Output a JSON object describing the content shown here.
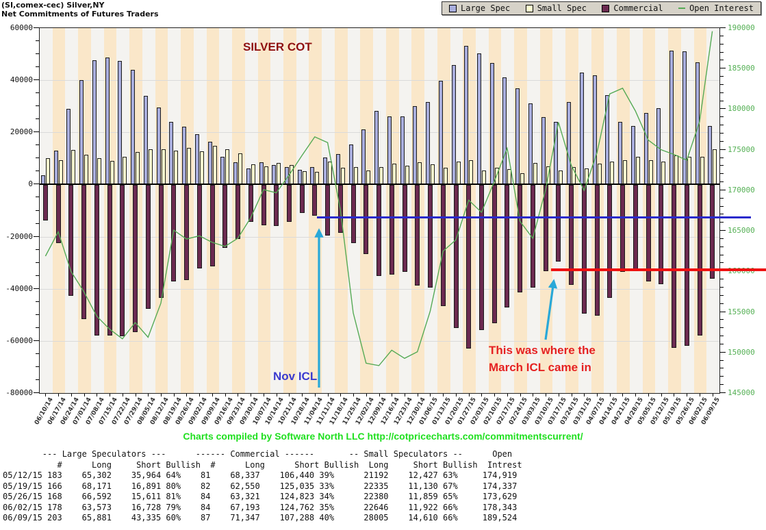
{
  "header": {
    "title": "(SI,comex-cec) Silver,NY",
    "subtitle": "Net Commitments of Futures Traders"
  },
  "legend": {
    "items": [
      {
        "label": "Large Spec",
        "color": "#A9AEDE",
        "type": "square"
      },
      {
        "label": "Small Spec",
        "color": "#FFFFCF",
        "type": "square"
      },
      {
        "label": "Commercial",
        "color": "#6B2A50",
        "type": "square"
      },
      {
        "label": "Open Interest",
        "color": "#55AA55",
        "type": "dash"
      }
    ]
  },
  "chart_data": {
    "type": "combo",
    "categories": [
      "06/10/14",
      "06/17/14",
      "06/24/14",
      "07/01/14",
      "07/08/14",
      "07/15/14",
      "07/22/14",
      "07/29/14",
      "08/05/14",
      "08/12/14",
      "08/19/14",
      "08/26/14",
      "09/02/14",
      "09/09/14",
      "09/16/14",
      "09/23/14",
      "09/30/14",
      "10/07/14",
      "10/14/14",
      "10/21/14",
      "10/28/14",
      "11/04/14",
      "11/11/14",
      "11/18/14",
      "11/25/14",
      "12/02/14",
      "12/09/14",
      "12/16/14",
      "12/23/14",
      "12/30/14",
      "01/06/15",
      "01/13/15",
      "01/20/15",
      "01/27/15",
      "02/03/15",
      "02/10/15",
      "02/17/15",
      "02/24/15",
      "03/03/15",
      "03/10/15",
      "03/17/15",
      "03/24/15",
      "03/31/15",
      "04/07/15",
      "04/14/15",
      "04/21/15",
      "04/28/15",
      "05/05/15",
      "05/12/15",
      "05/19/15",
      "05/26/15",
      "06/02/15",
      "06/09/15"
    ],
    "series": [
      {
        "name": "Large Spec",
        "type": "bar",
        "axis": "left",
        "color": "#A9AEDE",
        "values": [
          3600,
          13000,
          29100,
          40100,
          47600,
          48800,
          47300,
          43900,
          34000,
          29600,
          23900,
          22300,
          19200,
          16500,
          10700,
          8600,
          6200,
          8600,
          7400,
          6700,
          5500,
          6700,
          10400,
          11700,
          15300,
          21200,
          28100,
          26200,
          26000,
          30000,
          31600,
          39900,
          45900,
          53300,
          50300,
          46700,
          41000,
          37000,
          31000,
          25900,
          24000,
          31600,
          43000,
          42000,
          34200,
          24000,
          22400,
          27500,
          29338,
          51280,
          50981,
          46845,
          22546
        ]
      },
      {
        "name": "Small Spec",
        "type": "bar",
        "axis": "left",
        "color": "#FFFFCF",
        "values": [
          10000,
          9300,
          13300,
          11300,
          10200,
          9000,
          10600,
          12400,
          13500,
          13600,
          13000,
          14000,
          12800,
          14700,
          13400,
          12000,
          7800,
          6900,
          8300,
          7400,
          5200,
          4900,
          8800,
          6500,
          6800,
          5300,
          6600,
          8000,
          7300,
          8600,
          7800,
          6400,
          8800,
          9300,
          5400,
          6300,
          6000,
          4200,
          8300,
          7000,
          5400,
          6700,
          6200,
          8000,
          8900,
          9300,
          10600,
          9300,
          8765,
          11205,
          10521,
          10724,
          13395
        ]
      },
      {
        "name": "Commercial",
        "type": "bar",
        "axis": "left",
        "color": "#6B2A50",
        "values": [
          -13600,
          -22300,
          -42400,
          -51400,
          -57800,
          -57800,
          -57900,
          -56300,
          -47500,
          -43200,
          -36900,
          -36300,
          -32000,
          -31200,
          -24100,
          -20600,
          -14000,
          -15500,
          -15700,
          -14100,
          -10700,
          -11600,
          -19200,
          -18200,
          -22100,
          -26500,
          -34700,
          -34200,
          -33300,
          -38600,
          -39400,
          -46300,
          -54700,
          -62600,
          -55700,
          -53000,
          -47000,
          -41200,
          -39300,
          -32900,
          -29400,
          -38300,
          -49200,
          -50000,
          -43100,
          -33300,
          -33000,
          -36800,
          -38103,
          -62485,
          -61502,
          -57569,
          -35941
        ]
      },
      {
        "name": "Open Interest",
        "type": "line",
        "axis": "right",
        "color": "#55AA55",
        "values": [
          161800,
          164800,
          159900,
          157400,
          154400,
          152800,
          151600,
          153600,
          151800,
          156000,
          165000,
          163900,
          164300,
          163500,
          163000,
          164000,
          166500,
          170000,
          169600,
          171800,
          174200,
          176500,
          175800,
          167500,
          154800,
          148600,
          148300,
          150200,
          149200,
          150000,
          155000,
          162400,
          163800,
          168700,
          167200,
          171000,
          175100,
          166100,
          164000,
          170000,
          178300,
          173000,
          169900,
          174500,
          181800,
          182500,
          179700,
          176100,
          174919,
          174337,
          173629,
          178343,
          189524
        ]
      }
    ],
    "left_axis": {
      "min": -80000,
      "max": 60000,
      "step": 20000,
      "minor_step": 5000,
      "labels": [
        "60000",
        "40000",
        "20000",
        "0",
        "-20000",
        "-40000",
        "-60000",
        "-80000"
      ]
    },
    "right_axis": {
      "min": 145000,
      "max": 190000,
      "step": 5000,
      "minor_step": 1000,
      "color": "#55B055",
      "labels": [
        "190000",
        "185000",
        "180000",
        "175000",
        "170000",
        "165000",
        "160000",
        "155000",
        "150000",
        "145000"
      ]
    },
    "background": {
      "stripe_even": "#F4F3F0",
      "stripe_odd": "#FAE7C9"
    },
    "grid": true,
    "legend_position": "top-right"
  },
  "annotations": {
    "silver_cot": {
      "text": "SILVER COT",
      "color": "#8F1010"
    },
    "nov_icl": {
      "text": "Nov ICL",
      "color": "#3A3ACF"
    },
    "march_icl": {
      "line1": "This was where the",
      "line2": "March ICL came in",
      "color": "#E52222"
    },
    "blue_line": {
      "value": -12800,
      "color": "#2A2ACC"
    },
    "red_line": {
      "value": -33300,
      "color": "#EE1111"
    },
    "arrow_color": "#29A8D8"
  },
  "attribution": {
    "prefix": "Charts compiled by Software North LLC",
    "url": "http://cotpricecharts.com/commitmentscurrent/",
    "color": "#1FDF1F"
  },
  "table": {
    "header1": "        --- Large Speculators ---      ------ Commercial ------       -- Small Speculators --      Open",
    "header2": "           #      Long     Short Bullish  #      Long      Short Bullish  Long     Short Bullish  Intrest",
    "rows": [
      [
        "05/12/15",
        "183",
        "65,302",
        "35,964",
        "64%",
        "81",
        "68,337",
        "106,440",
        "39%",
        "21192",
        "12,427",
        "63%",
        "174,919"
      ],
      [
        "05/19/15",
        "166",
        "68,171",
        "16,891",
        "80%",
        "82",
        "62,550",
        "125,035",
        "33%",
        "22335",
        "11,130",
        "67%",
        "174,337"
      ],
      [
        "05/26/15",
        "168",
        "66,592",
        "15,611",
        "81%",
        "84",
        "63,321",
        "124,823",
        "34%",
        "22380",
        "11,859",
        "65%",
        "173,629"
      ],
      [
        "06/02/15",
        "178",
        "63,573",
        "16,728",
        "79%",
        "84",
        "67,193",
        "124,762",
        "35%",
        "22646",
        "11,922",
        "66%",
        "178,343"
      ],
      [
        "06/09/15",
        "203",
        "65,881",
        "43,335",
        "60%",
        "87",
        "71,347",
        "107,288",
        "40%",
        "28005",
        "14,610",
        "66%",
        "189,524"
      ]
    ]
  }
}
